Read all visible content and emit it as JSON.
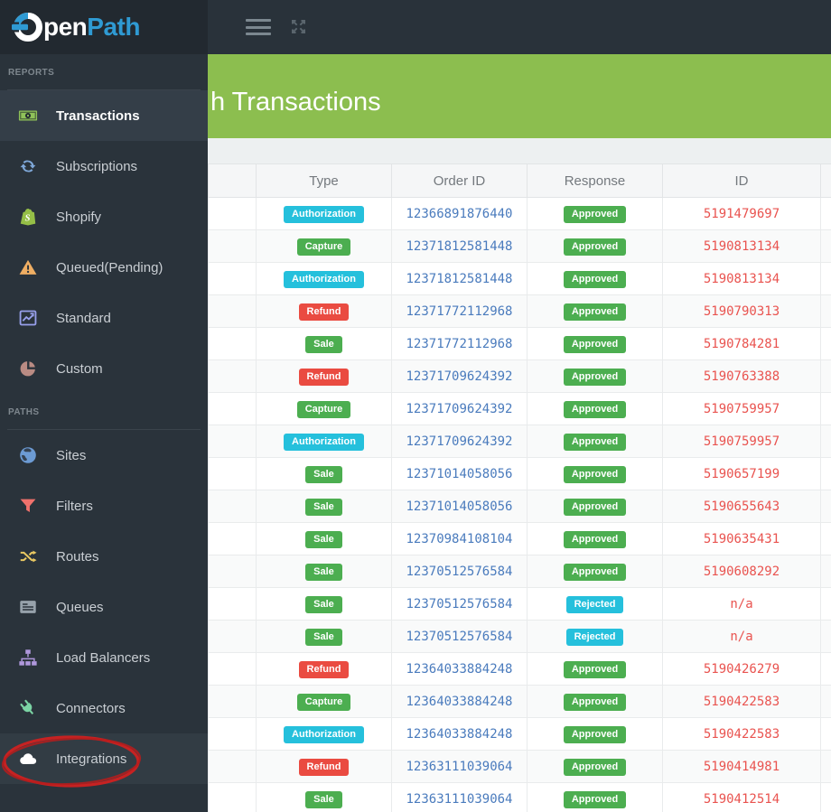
{
  "logo": {
    "pen": "pen",
    "path": "Path",
    "brand": "OpenPath"
  },
  "topbar": {
    "menu_icon": "hamburger-menu",
    "expand_icon": "expand-arrows"
  },
  "banner": {
    "title": "h Transactions"
  },
  "sidebar": {
    "sections": [
      {
        "label": "REPORTS",
        "items": [
          {
            "label": "Transactions",
            "icon": "money",
            "color": "#8fc259",
            "active": true
          },
          {
            "label": "Subscriptions",
            "icon": "refresh",
            "color": "#7fa8d9"
          },
          {
            "label": "Shopify",
            "icon": "shopify",
            "color": "#95bf47"
          },
          {
            "label": "Queued(Pending)",
            "icon": "warning",
            "color": "#efae63"
          },
          {
            "label": "Standard",
            "icon": "chart",
            "color": "#98a0ec"
          },
          {
            "label": "Custom",
            "icon": "pie",
            "color": "#b98b83"
          }
        ]
      },
      {
        "label": "PATHS",
        "items": [
          {
            "label": "Sites",
            "icon": "globe",
            "color": "#6c9bd4"
          },
          {
            "label": "Filters",
            "icon": "filter",
            "color": "#f0716c"
          },
          {
            "label": "Routes",
            "icon": "shuffle",
            "color": "#e9c862"
          },
          {
            "label": "Queues",
            "icon": "list",
            "color": "#97a2ab"
          },
          {
            "label": "Load Balancers",
            "icon": "sitemap",
            "color": "#af97dc"
          },
          {
            "label": "Connectors",
            "icon": "plug",
            "color": "#7bd4a4"
          },
          {
            "label": "Integrations",
            "icon": "cloud",
            "color": "#ffffff",
            "highlight": true,
            "annotated": true
          }
        ]
      }
    ]
  },
  "table": {
    "columns": [
      "",
      "Type",
      "Order ID",
      "Response",
      "ID",
      ""
    ],
    "rows": [
      {
        "type": "Authorization",
        "type_style": "info",
        "order_id": "12366891876440",
        "response": "Approved",
        "response_style": "success",
        "id": "5191479697"
      },
      {
        "type": "Capture",
        "type_style": "success",
        "order_id": "12371812581448",
        "response": "Approved",
        "response_style": "success",
        "id": "5190813134"
      },
      {
        "type": "Authorization",
        "type_style": "info",
        "order_id": "12371812581448",
        "response": "Approved",
        "response_style": "success",
        "id": "5190813134"
      },
      {
        "type": "Refund",
        "type_style": "danger",
        "order_id": "12371772112968",
        "response": "Approved",
        "response_style": "success",
        "id": "5190790313"
      },
      {
        "type": "Sale",
        "type_style": "success",
        "order_id": "12371772112968",
        "response": "Approved",
        "response_style": "success",
        "id": "5190784281"
      },
      {
        "type": "Refund",
        "type_style": "danger",
        "order_id": "12371709624392",
        "response": "Approved",
        "response_style": "success",
        "id": "5190763388"
      },
      {
        "type": "Capture",
        "type_style": "success",
        "order_id": "12371709624392",
        "response": "Approved",
        "response_style": "success",
        "id": "5190759957"
      },
      {
        "type": "Authorization",
        "type_style": "info",
        "order_id": "12371709624392",
        "response": "Approved",
        "response_style": "success",
        "id": "5190759957"
      },
      {
        "type": "Sale",
        "type_style": "success",
        "order_id": "12371014058056",
        "response": "Approved",
        "response_style": "success",
        "id": "5190657199"
      },
      {
        "type": "Sale",
        "type_style": "success",
        "order_id": "12371014058056",
        "response": "Approved",
        "response_style": "success",
        "id": "5190655643"
      },
      {
        "type": "Sale",
        "type_style": "success",
        "order_id": "12370984108104",
        "response": "Approved",
        "response_style": "success",
        "id": "5190635431"
      },
      {
        "type": "Sale",
        "type_style": "success",
        "order_id": "12370512576584",
        "response": "Approved",
        "response_style": "success",
        "id": "5190608292"
      },
      {
        "type": "Sale",
        "type_style": "success",
        "order_id": "12370512576584",
        "response": "Rejected",
        "response_style": "info",
        "id": "n/a"
      },
      {
        "type": "Sale",
        "type_style": "success",
        "order_id": "12370512576584",
        "response": "Rejected",
        "response_style": "info",
        "id": "n/a"
      },
      {
        "type": "Refund",
        "type_style": "danger",
        "order_id": "12364033884248",
        "response": "Approved",
        "response_style": "success",
        "id": "5190426279"
      },
      {
        "type": "Capture",
        "type_style": "success",
        "order_id": "12364033884248",
        "response": "Approved",
        "response_style": "success",
        "id": "5190422583"
      },
      {
        "type": "Authorization",
        "type_style": "info",
        "order_id": "12364033884248",
        "response": "Approved",
        "response_style": "success",
        "id": "5190422583"
      },
      {
        "type": "Refund",
        "type_style": "danger",
        "order_id": "12363111039064",
        "response": "Approved",
        "response_style": "success",
        "id": "5190414981"
      },
      {
        "type": "Sale",
        "type_style": "success",
        "order_id": "12363111039064",
        "response": "Approved",
        "response_style": "success",
        "id": "5190412514"
      }
    ]
  },
  "colors": {
    "banner_green": "#8cbe4f",
    "badge_cyan": "#25c0dc",
    "badge_green": "#4cae50",
    "badge_red": "#ea4b41",
    "order_id_blue": "#4a7bbd",
    "id_red": "#e9534f",
    "sidebar_dark": "#2a333b",
    "topbar_dark": "#29323a",
    "annotation_red": "#c62222",
    "logo_blue": "#2f9ad3"
  }
}
